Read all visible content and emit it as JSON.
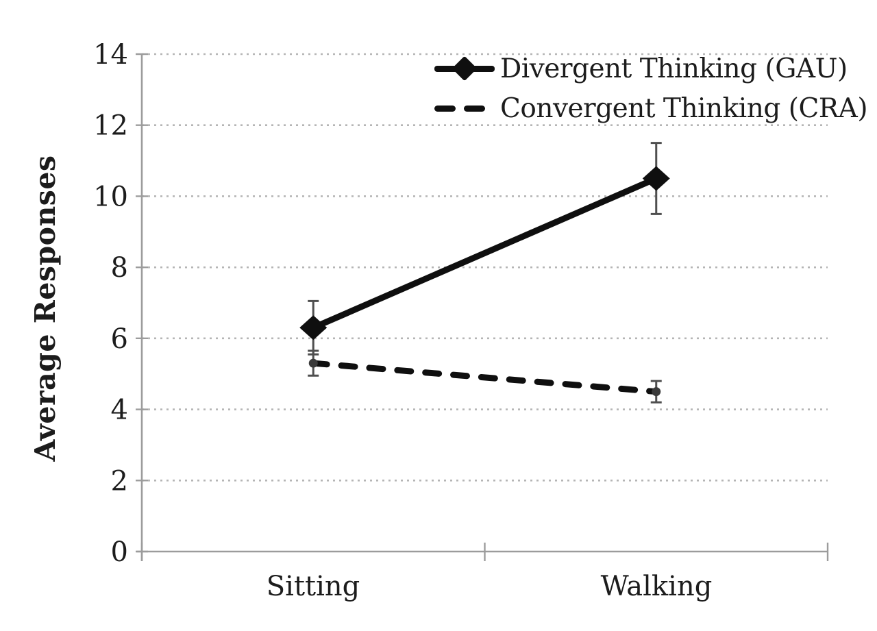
{
  "chart_data": {
    "type": "line",
    "title": "",
    "categories": [
      "Sitting",
      "Walking"
    ],
    "series": [
      {
        "name": "Divergent Thinking (GAU)",
        "line_style": "solid",
        "marker": "diamond",
        "values": [
          6.3,
          10.5
        ],
        "error_bars": [
          0.75,
          1.0
        ]
      },
      {
        "name": "Convergent Thinking (CRA)",
        "line_style": "dashed",
        "marker": "dot",
        "values": [
          5.3,
          4.5
        ],
        "error_bars": [
          0.35,
          0.3
        ]
      }
    ],
    "xlabel": "",
    "ylabel": "Average Responses",
    "ylim": [
      0,
      14
    ],
    "ytick_step": 2,
    "yticks": [
      0,
      2,
      4,
      6,
      8,
      10,
      12,
      14
    ],
    "grid": "horizontal-dotted",
    "legend_position": "top-right-inside"
  },
  "colors": {
    "series": "#0f0f0f",
    "grid": "#b5b5b5",
    "axis": "#9c9c9c",
    "error_bar": "#4f4f4f",
    "text": "#1c1c1c",
    "background": "#ffffff"
  }
}
